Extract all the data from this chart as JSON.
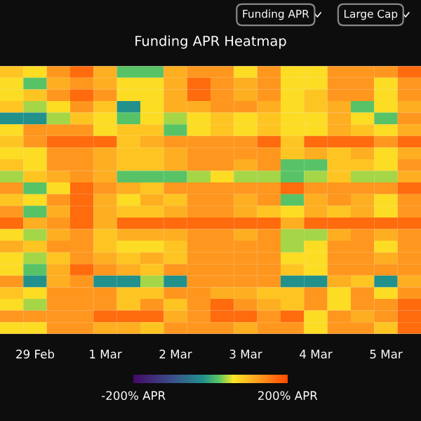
{
  "chart_data": {
    "type": "heatmap",
    "title": "Funding APR Heatmap",
    "annotations": [
      "Funding APR",
      "Large Cap"
    ],
    "categories": [
      null,
      "29 Feb",
      null,
      null,
      "1 Mar",
      null,
      null,
      "2 Mar",
      null,
      null,
      "3 Mar",
      null,
      null,
      "4 Mar",
      null,
      null,
      "5 Mar",
      null
    ],
    "y_categories": [
      null,
      null,
      null,
      null,
      null,
      null,
      null,
      null,
      null,
      null,
      null,
      null,
      null,
      null,
      null,
      null,
      null,
      null,
      null,
      null,
      null,
      null,
      null
    ],
    "cells": [
      [
        90,
        70,
        130,
        170,
        110,
        20,
        20,
        110,
        130,
        130,
        70,
        130,
        70,
        70,
        130,
        130,
        130,
        170
      ],
      [
        70,
        20,
        110,
        130,
        110,
        70,
        70,
        110,
        170,
        130,
        110,
        130,
        70,
        70,
        130,
        130,
        70,
        130
      ],
      [
        70,
        90,
        130,
        170,
        130,
        70,
        70,
        110,
        170,
        130,
        110,
        130,
        70,
        90,
        130,
        130,
        70,
        130
      ],
      [
        90,
        40,
        70,
        130,
        90,
        -20,
        70,
        110,
        110,
        130,
        130,
        110,
        70,
        90,
        110,
        20,
        70,
        110
      ],
      [
        -20,
        -20,
        40,
        90,
        70,
        20,
        70,
        40,
        70,
        90,
        70,
        90,
        70,
        70,
        110,
        70,
        20,
        130
      ],
      [
        70,
        130,
        130,
        130,
        70,
        90,
        90,
        20,
        70,
        90,
        70,
        90,
        70,
        70,
        110,
        90,
        70,
        110
      ],
      [
        90,
        130,
        170,
        170,
        170,
        90,
        110,
        130,
        130,
        130,
        130,
        170,
        90,
        170,
        170,
        170,
        130,
        170
      ],
      [
        70,
        70,
        130,
        130,
        110,
        90,
        90,
        110,
        130,
        130,
        130,
        130,
        90,
        110,
        90,
        110,
        70,
        110
      ],
      [
        90,
        70,
        130,
        130,
        110,
        90,
        90,
        110,
        130,
        130,
        110,
        130,
        20,
        20,
        90,
        90,
        70,
        130
      ],
      [
        40,
        90,
        110,
        130,
        110,
        20,
        20,
        20,
        40,
        70,
        40,
        40,
        20,
        40,
        90,
        40,
        40,
        110
      ],
      [
        130,
        20,
        70,
        170,
        130,
        110,
        90,
        130,
        130,
        130,
        130,
        130,
        170,
        130,
        130,
        130,
        130,
        170
      ],
      [
        90,
        70,
        130,
        170,
        110,
        70,
        110,
        90,
        130,
        130,
        110,
        130,
        20,
        110,
        130,
        110,
        70,
        130
      ],
      [
        130,
        20,
        110,
        170,
        110,
        90,
        90,
        110,
        130,
        130,
        110,
        90,
        70,
        110,
        90,
        110,
        70,
        130
      ],
      [
        170,
        110,
        130,
        170,
        110,
        170,
        170,
        170,
        170,
        170,
        170,
        170,
        110,
        170,
        170,
        170,
        170,
        170
      ],
      [
        70,
        40,
        110,
        130,
        90,
        110,
        110,
        110,
        130,
        130,
        110,
        130,
        40,
        40,
        110,
        130,
        110,
        130
      ],
      [
        110,
        90,
        130,
        130,
        90,
        70,
        70,
        90,
        130,
        130,
        130,
        130,
        40,
        70,
        130,
        130,
        70,
        130
      ],
      [
        70,
        40,
        90,
        130,
        110,
        90,
        110,
        90,
        130,
        130,
        130,
        130,
        70,
        70,
        130,
        130,
        110,
        130
      ],
      [
        70,
        20,
        110,
        170,
        130,
        110,
        90,
        130,
        130,
        130,
        130,
        130,
        90,
        70,
        130,
        130,
        130,
        130
      ],
      [
        130,
        -20,
        110,
        130,
        -20,
        -20,
        40,
        -20,
        130,
        130,
        130,
        130,
        -20,
        -20,
        110,
        90,
        -20,
        110
      ],
      [
        90,
        70,
        130,
        130,
        130,
        90,
        90,
        130,
        130,
        110,
        110,
        90,
        90,
        130,
        70,
        130,
        70,
        130
      ],
      [
        70,
        40,
        130,
        130,
        130,
        90,
        130,
        90,
        130,
        170,
        130,
        110,
        90,
        130,
        70,
        130,
        130,
        170
      ],
      [
        130,
        130,
        130,
        130,
        170,
        170,
        170,
        110,
        130,
        170,
        170,
        130,
        170,
        70,
        130,
        110,
        130,
        170
      ],
      [
        70,
        70,
        130,
        130,
        110,
        110,
        90,
        130,
        130,
        130,
        110,
        130,
        130,
        70,
        130,
        130,
        90,
        170
      ]
    ],
    "clim": [
      -200,
      200
    ],
    "cticks": [
      {
        "value": -200,
        "label": "-200% APR"
      },
      {
        "value": 200,
        "label": "200% APR"
      }
    ]
  }
}
